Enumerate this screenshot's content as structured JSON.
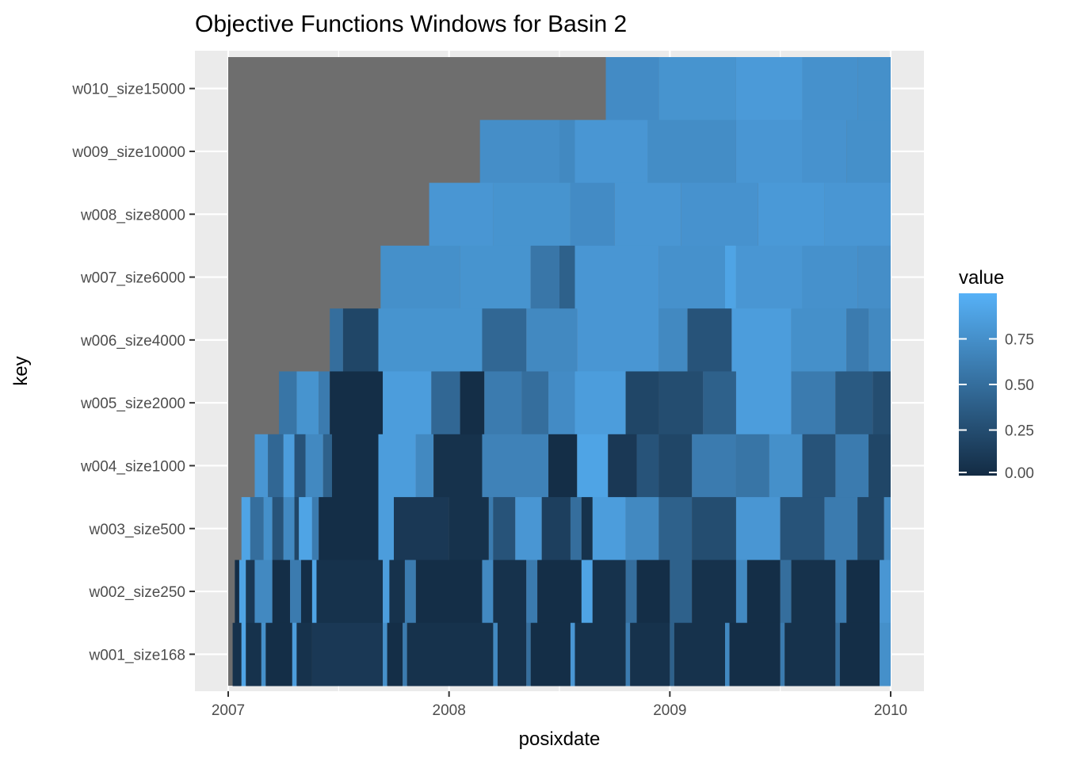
{
  "chart_data": {
    "type": "heatmap",
    "title": "Objective Functions Windows for Basin 2",
    "xlabel": "posixdate",
    "ylabel": "key",
    "x_ticks": [
      "2007",
      "2008",
      "2009",
      "2010"
    ],
    "xlim": [
      "2007-01-01",
      "2010-01-01"
    ],
    "y_categories": [
      "w001_size168",
      "w002_size250",
      "w003_size500",
      "w004_size1000",
      "w005_size2000",
      "w006_size4000",
      "w007_size6000",
      "w008_size8000",
      "w009_size10000",
      "w010_size15000"
    ],
    "legend": {
      "title": "value",
      "placement": "right",
      "ticks": [
        "0.00",
        "0.25",
        "0.50",
        "0.75"
      ],
      "range": [
        0,
        1
      ]
    },
    "colors": {
      "low": "#132b43",
      "high": "#56b1f7",
      "na": "#6e6e6e",
      "panel": "#ebebeb",
      "grid": "#ffffff"
    },
    "grid": true,
    "series": [
      {
        "key": "w010_size15000",
        "start": 2008.71,
        "segments": [
          [
            2008.71,
            0.72
          ],
          [
            2008.95,
            0.78
          ],
          [
            2009.3,
            0.83
          ],
          [
            2009.6,
            0.76
          ],
          [
            2009.85,
            0.75
          ]
        ]
      },
      {
        "key": "w009_size10000",
        "start": 2008.14,
        "segments": [
          [
            2008.14,
            0.74
          ],
          [
            2008.5,
            0.7
          ],
          [
            2008.57,
            0.8
          ],
          [
            2008.9,
            0.73
          ],
          [
            2009.3,
            0.8
          ],
          [
            2009.6,
            0.77
          ],
          [
            2009.8,
            0.75
          ]
        ]
      },
      {
        "key": "w008_size8000",
        "start": 2007.91,
        "segments": [
          [
            2007.91,
            0.8
          ],
          [
            2008.2,
            0.78
          ],
          [
            2008.55,
            0.72
          ],
          [
            2008.75,
            0.8
          ],
          [
            2009.05,
            0.77
          ],
          [
            2009.4,
            0.82
          ],
          [
            2009.7,
            0.8
          ]
        ]
      },
      {
        "key": "w007_size6000",
        "start": 2007.69,
        "segments": [
          [
            2007.69,
            0.75
          ],
          [
            2008.05,
            0.78
          ],
          [
            2008.37,
            0.56
          ],
          [
            2008.5,
            0.4
          ],
          [
            2008.57,
            0.8
          ],
          [
            2008.95,
            0.76
          ],
          [
            2009.25,
            0.9
          ],
          [
            2009.3,
            0.8
          ],
          [
            2009.6,
            0.76
          ],
          [
            2009.85,
            0.74
          ]
        ]
      },
      {
        "key": "w006_size4000",
        "start": 2007.46,
        "segments": [
          [
            2007.46,
            0.5
          ],
          [
            2007.52,
            0.2
          ],
          [
            2007.68,
            0.78
          ],
          [
            2008.15,
            0.45
          ],
          [
            2008.35,
            0.7
          ],
          [
            2008.58,
            0.8
          ],
          [
            2008.95,
            0.7
          ],
          [
            2009.08,
            0.3
          ],
          [
            2009.28,
            0.85
          ],
          [
            2009.55,
            0.75
          ],
          [
            2009.8,
            0.6
          ],
          [
            2009.9,
            0.7
          ]
        ]
      },
      {
        "key": "w005_size2000",
        "start": 2007.23,
        "segments": [
          [
            2007.23,
            0.55
          ],
          [
            2007.31,
            0.78
          ],
          [
            2007.41,
            0.6
          ],
          [
            2007.46,
            0.02
          ],
          [
            2007.7,
            0.85
          ],
          [
            2007.92,
            0.45
          ],
          [
            2008.05,
            0.02
          ],
          [
            2008.16,
            0.6
          ],
          [
            2008.33,
            0.5
          ],
          [
            2008.45,
            0.72
          ],
          [
            2008.57,
            0.85
          ],
          [
            2008.8,
            0.2
          ],
          [
            2008.95,
            0.25
          ],
          [
            2009.15,
            0.4
          ],
          [
            2009.3,
            0.85
          ],
          [
            2009.55,
            0.6
          ],
          [
            2009.75,
            0.35
          ],
          [
            2009.92,
            0.25
          ]
        ]
      },
      {
        "key": "w004_size1000",
        "start": 2007.12,
        "segments": [
          [
            2007.12,
            0.8
          ],
          [
            2007.18,
            0.45
          ],
          [
            2007.25,
            0.85
          ],
          [
            2007.3,
            0.3
          ],
          [
            2007.35,
            0.7
          ],
          [
            2007.43,
            0.4
          ],
          [
            2007.47,
            0.02
          ],
          [
            2007.68,
            0.85
          ],
          [
            2007.85,
            0.7
          ],
          [
            2007.93,
            0.05
          ],
          [
            2008.15,
            0.65
          ],
          [
            2008.45,
            0.02
          ],
          [
            2008.58,
            0.9
          ],
          [
            2008.72,
            0.1
          ],
          [
            2008.85,
            0.3
          ],
          [
            2008.95,
            0.2
          ],
          [
            2009.1,
            0.6
          ],
          [
            2009.3,
            0.55
          ],
          [
            2009.45,
            0.75
          ],
          [
            2009.6,
            0.3
          ],
          [
            2009.75,
            0.6
          ],
          [
            2009.9,
            0.2
          ]
        ]
      },
      {
        "key": "w003_size500",
        "start": 2007.06,
        "segments": [
          [
            2007.06,
            0.9
          ],
          [
            2007.1,
            0.5
          ],
          [
            2007.16,
            0.75
          ],
          [
            2007.2,
            0.3
          ],
          [
            2007.25,
            0.7
          ],
          [
            2007.3,
            0.2
          ],
          [
            2007.32,
            0.9
          ],
          [
            2007.38,
            0.6
          ],
          [
            2007.41,
            0.02
          ],
          [
            2007.68,
            0.85
          ],
          [
            2007.75,
            0.1
          ],
          [
            2008.0,
            0.05
          ],
          [
            2008.18,
            0.6
          ],
          [
            2008.2,
            0.3
          ],
          [
            2008.3,
            0.8
          ],
          [
            2008.42,
            0.15
          ],
          [
            2008.55,
            0.5
          ],
          [
            2008.6,
            0.05
          ],
          [
            2008.65,
            0.85
          ],
          [
            2008.8,
            0.7
          ],
          [
            2008.95,
            0.4
          ],
          [
            2009.1,
            0.25
          ],
          [
            2009.3,
            0.8
          ],
          [
            2009.5,
            0.3
          ],
          [
            2009.7,
            0.6
          ],
          [
            2009.85,
            0.2
          ],
          [
            2009.97,
            0.7
          ]
        ]
      },
      {
        "key": "w002_size250",
        "start": 2007.03,
        "segments": [
          [
            2007.03,
            0.02
          ],
          [
            2007.05,
            0.9
          ],
          [
            2007.08,
            0.1
          ],
          [
            2007.12,
            0.7
          ],
          [
            2007.2,
            0.02
          ],
          [
            2007.28,
            0.6
          ],
          [
            2007.33,
            0.02
          ],
          [
            2007.38,
            0.9
          ],
          [
            2007.4,
            0.05
          ],
          [
            2007.7,
            0.85
          ],
          [
            2007.73,
            0.05
          ],
          [
            2007.8,
            0.6
          ],
          [
            2007.85,
            0.02
          ],
          [
            2008.15,
            0.7
          ],
          [
            2008.2,
            0.05
          ],
          [
            2008.35,
            0.6
          ],
          [
            2008.4,
            0.02
          ],
          [
            2008.6,
            0.9
          ],
          [
            2008.65,
            0.05
          ],
          [
            2008.8,
            0.5
          ],
          [
            2008.85,
            0.02
          ],
          [
            2009.0,
            0.4
          ],
          [
            2009.1,
            0.05
          ],
          [
            2009.3,
            0.7
          ],
          [
            2009.35,
            0.02
          ],
          [
            2009.5,
            0.5
          ],
          [
            2009.55,
            0.05
          ],
          [
            2009.75,
            0.6
          ],
          [
            2009.8,
            0.02
          ],
          [
            2009.95,
            0.8
          ]
        ]
      },
      {
        "key": "w001_size168",
        "start": 2007.02,
        "segments": [
          [
            2007.02,
            0.05
          ],
          [
            2007.06,
            0.9
          ],
          [
            2007.08,
            0.05
          ],
          [
            2007.15,
            0.75
          ],
          [
            2007.17,
            0.02
          ],
          [
            2007.29,
            0.85
          ],
          [
            2007.31,
            0.05
          ],
          [
            2007.38,
            0.1
          ],
          [
            2007.7,
            0.75
          ],
          [
            2007.72,
            0.02
          ],
          [
            2007.79,
            0.6
          ],
          [
            2007.81,
            0.05
          ],
          [
            2008.2,
            0.7
          ],
          [
            2008.22,
            0.05
          ],
          [
            2008.35,
            0.5
          ],
          [
            2008.37,
            0.02
          ],
          [
            2008.55,
            0.8
          ],
          [
            2008.57,
            0.05
          ],
          [
            2008.8,
            0.6
          ],
          [
            2008.82,
            0.05
          ],
          [
            2009.0,
            0.4
          ],
          [
            2009.02,
            0.05
          ],
          [
            2009.25,
            0.7
          ],
          [
            2009.27,
            0.02
          ],
          [
            2009.5,
            0.6
          ],
          [
            2009.52,
            0.05
          ],
          [
            2009.75,
            0.5
          ],
          [
            2009.77,
            0.02
          ],
          [
            2009.95,
            0.75
          ]
        ]
      }
    ]
  }
}
